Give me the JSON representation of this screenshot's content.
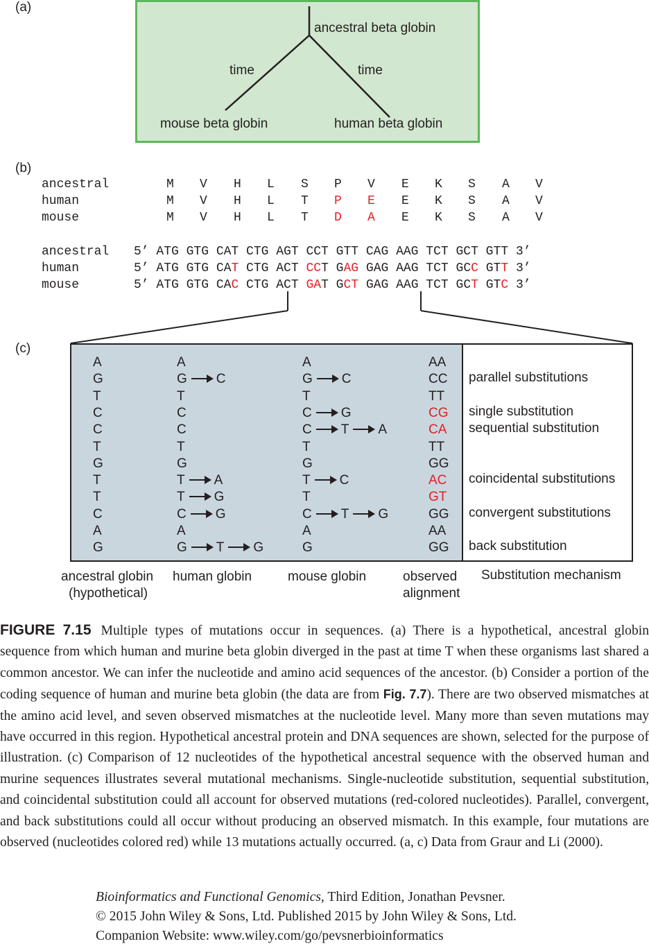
{
  "panel_a": {
    "label": "(a)",
    "root": "ancestral beta globin",
    "left_time": "time",
    "right_time": "time",
    "left_leaf": "mouse beta globin",
    "right_leaf": "human beta globin",
    "background": "#d2e7cf",
    "border": "#5cb85c"
  },
  "panel_b": {
    "label": "(b)",
    "protein": [
      {
        "name": "ancestral",
        "residues": [
          "M",
          "V",
          "H",
          "L",
          "S",
          "P",
          "V",
          "E",
          "K",
          "S",
          "A",
          "V"
        ],
        "red": []
      },
      {
        "name": "human",
        "residues": [
          "M",
          "V",
          "H",
          "L",
          "T",
          "P",
          "E",
          "E",
          "K",
          "S",
          "A",
          "V"
        ],
        "red": [
          5,
          6
        ]
      },
      {
        "name": "mouse",
        "residues": [
          "M",
          "V",
          "H",
          "L",
          "T",
          "D",
          "A",
          "E",
          "K",
          "S",
          "A",
          "V"
        ],
        "red": [
          5,
          6
        ]
      }
    ],
    "dna": [
      {
        "name": "ancestral",
        "prefix": "5’",
        "suffix": "3’",
        "segments": [
          {
            "t": "ATG GTG CAT CTG AGT CCT GTT CAG AAG TCT GCT GTT",
            "r": false
          }
        ]
      },
      {
        "name": "human",
        "prefix": "5’",
        "suffix": "3’",
        "segments": [
          {
            "t": "ATG GTG CA",
            "r": false
          },
          {
            "t": "T",
            "r": true
          },
          {
            "t": " CTG ACT ",
            "r": false
          },
          {
            "t": "CC",
            "r": true
          },
          {
            "t": "T G",
            "r": false
          },
          {
            "t": "AG",
            "r": true
          },
          {
            "t": " GAG AAG TCT GC",
            "r": false
          },
          {
            "t": "C",
            "r": true
          },
          {
            "t": " GT",
            "r": false
          },
          {
            "t": "T",
            "r": true
          }
        ]
      },
      {
        "name": "mouse",
        "prefix": "5’",
        "suffix": "3’",
        "segments": [
          {
            "t": "ATG GTG CA",
            "r": false
          },
          {
            "t": "C",
            "r": true
          },
          {
            "t": " CTG ACT ",
            "r": false
          },
          {
            "t": "GA",
            "r": true
          },
          {
            "t": "T G",
            "r": false
          },
          {
            "t": "CT",
            "r": true
          },
          {
            "t": " GAG AAG TCT GC",
            "r": false
          },
          {
            "t": "T",
            "r": true
          },
          {
            "t": " GT",
            "r": false
          },
          {
            "t": "C",
            "r": true
          }
        ]
      }
    ]
  },
  "panel_c": {
    "label": "(c)",
    "background": "#c9d6de",
    "rows": [
      {
        "anc": "A",
        "human": [
          "A"
        ],
        "mouse": [
          "A"
        ],
        "obs": "AA",
        "obs_red": false,
        "mechanism": ""
      },
      {
        "anc": "G",
        "human": [
          "G",
          "C"
        ],
        "mouse": [
          "G",
          "C"
        ],
        "obs": "CC",
        "obs_red": false,
        "mechanism": "parallel substitutions"
      },
      {
        "anc": "T",
        "human": [
          "T"
        ],
        "mouse": [
          "T"
        ],
        "obs": "TT",
        "obs_red": false,
        "mechanism": ""
      },
      {
        "anc": "C",
        "human": [
          "C"
        ],
        "mouse": [
          "C",
          "G"
        ],
        "obs": "CG",
        "obs_red": true,
        "mechanism": "single substitution"
      },
      {
        "anc": "C",
        "human": [
          "C"
        ],
        "mouse": [
          "C",
          "T",
          "A"
        ],
        "obs": "CA",
        "obs_red": true,
        "mechanism": "sequential substitution"
      },
      {
        "anc": "T",
        "human": [
          "T"
        ],
        "mouse": [
          "T"
        ],
        "obs": "TT",
        "obs_red": false,
        "mechanism": ""
      },
      {
        "anc": "G",
        "human": [
          "G"
        ],
        "mouse": [
          "G"
        ],
        "obs": "GG",
        "obs_red": false,
        "mechanism": ""
      },
      {
        "anc": "T",
        "human": [
          "T",
          "A"
        ],
        "mouse": [
          "T",
          "C"
        ],
        "obs": "AC",
        "obs_red": true,
        "mechanism": "coincidental substitutions"
      },
      {
        "anc": "T",
        "human": [
          "T",
          "G"
        ],
        "mouse": [
          "T"
        ],
        "obs": "GT",
        "obs_red": true,
        "mechanism": ""
      },
      {
        "anc": "C",
        "human": [
          "C",
          "G"
        ],
        "mouse": [
          "C",
          "T",
          "G"
        ],
        "obs": "GG",
        "obs_red": false,
        "mechanism": "convergent substitutions"
      },
      {
        "anc": "A",
        "human": [
          "A"
        ],
        "mouse": [
          "A"
        ],
        "obs": "AA",
        "obs_red": false,
        "mechanism": ""
      },
      {
        "anc": "G",
        "human": [
          "G",
          "T",
          "G"
        ],
        "mouse": [
          "G"
        ],
        "obs": "GG",
        "obs_red": false,
        "mechanism": "back substitution"
      }
    ],
    "col_labels": {
      "ancestral_1": "ancestral globin",
      "ancestral_2": "(hypothetical)",
      "human": "human globin",
      "mouse": "mouse globin",
      "observed_1": "observed",
      "observed_2": "alignment",
      "mechanism": "Substitution mechanism"
    }
  },
  "caption": {
    "figure": "FIGURE 7.15",
    "part1": "Multiple types of mutations occur in sequences. (a) There is a hypothetical, ancestral globin sequence from which human and murine beta globin diverged in the past at time T when these organisms last shared a common ancestor. We can infer the nucleotide and amino acid sequences of the ancestor. (b) Consider a portion of the coding sequence of human and murine beta globin (the data are from ",
    "figref": "Fig. 7.7",
    "part2": "). There are two observed mismatches at the amino acid level, and seven observed mismatches at the nucleotide level. Many more than seven mutations may have occurred in this region. Hypothetical ancestral protein and DNA sequences are shown, selected for the purpose of illustration. (c) Comparison of 12 nucleotides of the hypothetical ancestral sequence with the observed human and murine sequences illustrates several mutational mechanisms. Single-nucleotide substitution, sequential substitution, and coincidental substitution could all account for observed mutations (red-colored nucleotides). Parallel, convergent, and back substitutions could all occur without producing an observed mismatch. In this example, four mutations are observed (nucleotides colored red) while 13 mutations actually occurred. (a, c) Data from Graur and Li (2000)."
  },
  "footer": {
    "book_title": "Bioinformatics and Functional Genomics",
    "book_rest": ", Third Edition, Jonathan Pevsner.",
    "copyright": "© 2015 John Wiley & Sons, Ltd. Published 2015 by John Wiley & Sons, Ltd.",
    "website": "Companion Website: www.wiley.com/go/pevsnerbioinformatics"
  }
}
